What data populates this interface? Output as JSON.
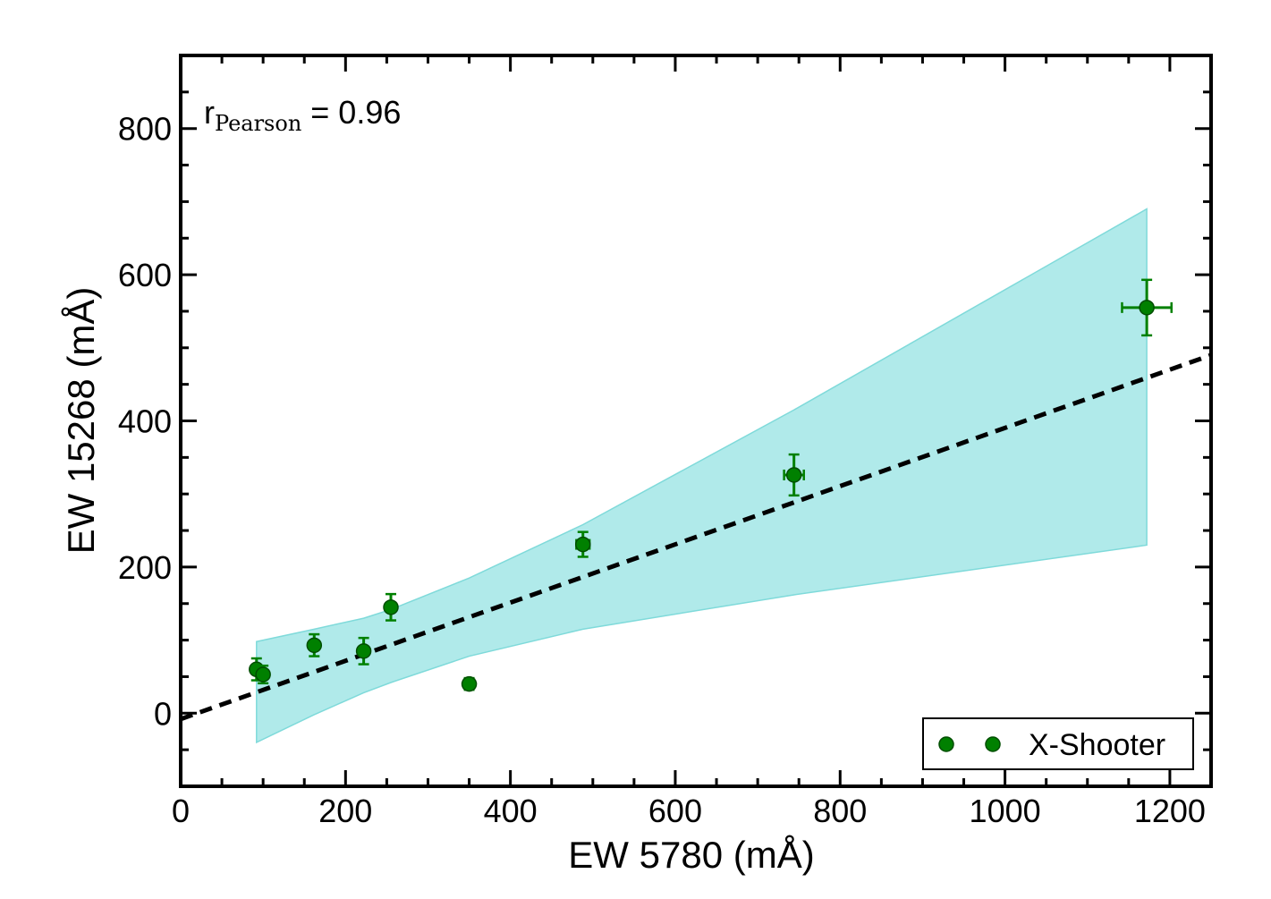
{
  "chart_data": {
    "type": "scatter",
    "xlabel": "EW 5780 (mÅ)",
    "ylabel": "EW 15268 (mÅ)",
    "xlim": [
      0,
      1250
    ],
    "ylim": [
      -100,
      900
    ],
    "xticks": [
      0,
      200,
      400,
      600,
      800,
      1000,
      1200
    ],
    "yticks": [
      0,
      200,
      400,
      600,
      800
    ],
    "grid": false,
    "annotation": {
      "main": "r",
      "subscript": "Pearson",
      "suffix": " = 0.96"
    },
    "series": [
      {
        "name": "X-Shooter",
        "color": "#008000",
        "edge_color": "#004d00",
        "points": [
          {
            "x": 92,
            "y": 60,
            "xerr": 0,
            "yerr": 15
          },
          {
            "x": 100,
            "y": 53,
            "xerr": 0,
            "yerr": 12
          },
          {
            "x": 162,
            "y": 93,
            "xerr": 0,
            "yerr": 15
          },
          {
            "x": 222,
            "y": 85,
            "xerr": 0,
            "yerr": 18
          },
          {
            "x": 255,
            "y": 145,
            "xerr": 0,
            "yerr": 18
          },
          {
            "x": 350,
            "y": 40,
            "xerr": 6,
            "yerr": 8
          },
          {
            "x": 488,
            "y": 231,
            "xerr": 8,
            "yerr": 17
          },
          {
            "x": 744,
            "y": 326,
            "xerr": 12,
            "yerr": 28
          },
          {
            "x": 1172,
            "y": 555,
            "xerr": 30,
            "yerr": 38
          }
        ]
      }
    ],
    "fit_line": {
      "style": "dashed",
      "color": "#000000",
      "x": [
        0,
        1250
      ],
      "y": [
        -8,
        490
      ]
    },
    "confidence_band": {
      "color": "#b0eaea",
      "edge_color": "#7fdada",
      "x": [
        92,
        162,
        222,
        255,
        350,
        488,
        744,
        1172
      ],
      "upper": [
        98,
        115,
        130,
        142,
        185,
        258,
        415,
        690
      ],
      "lower": [
        -40,
        -2,
        28,
        42,
        78,
        115,
        162,
        230
      ]
    },
    "legend": {
      "location": "lower-right",
      "entries": [
        "X-Shooter"
      ]
    }
  }
}
